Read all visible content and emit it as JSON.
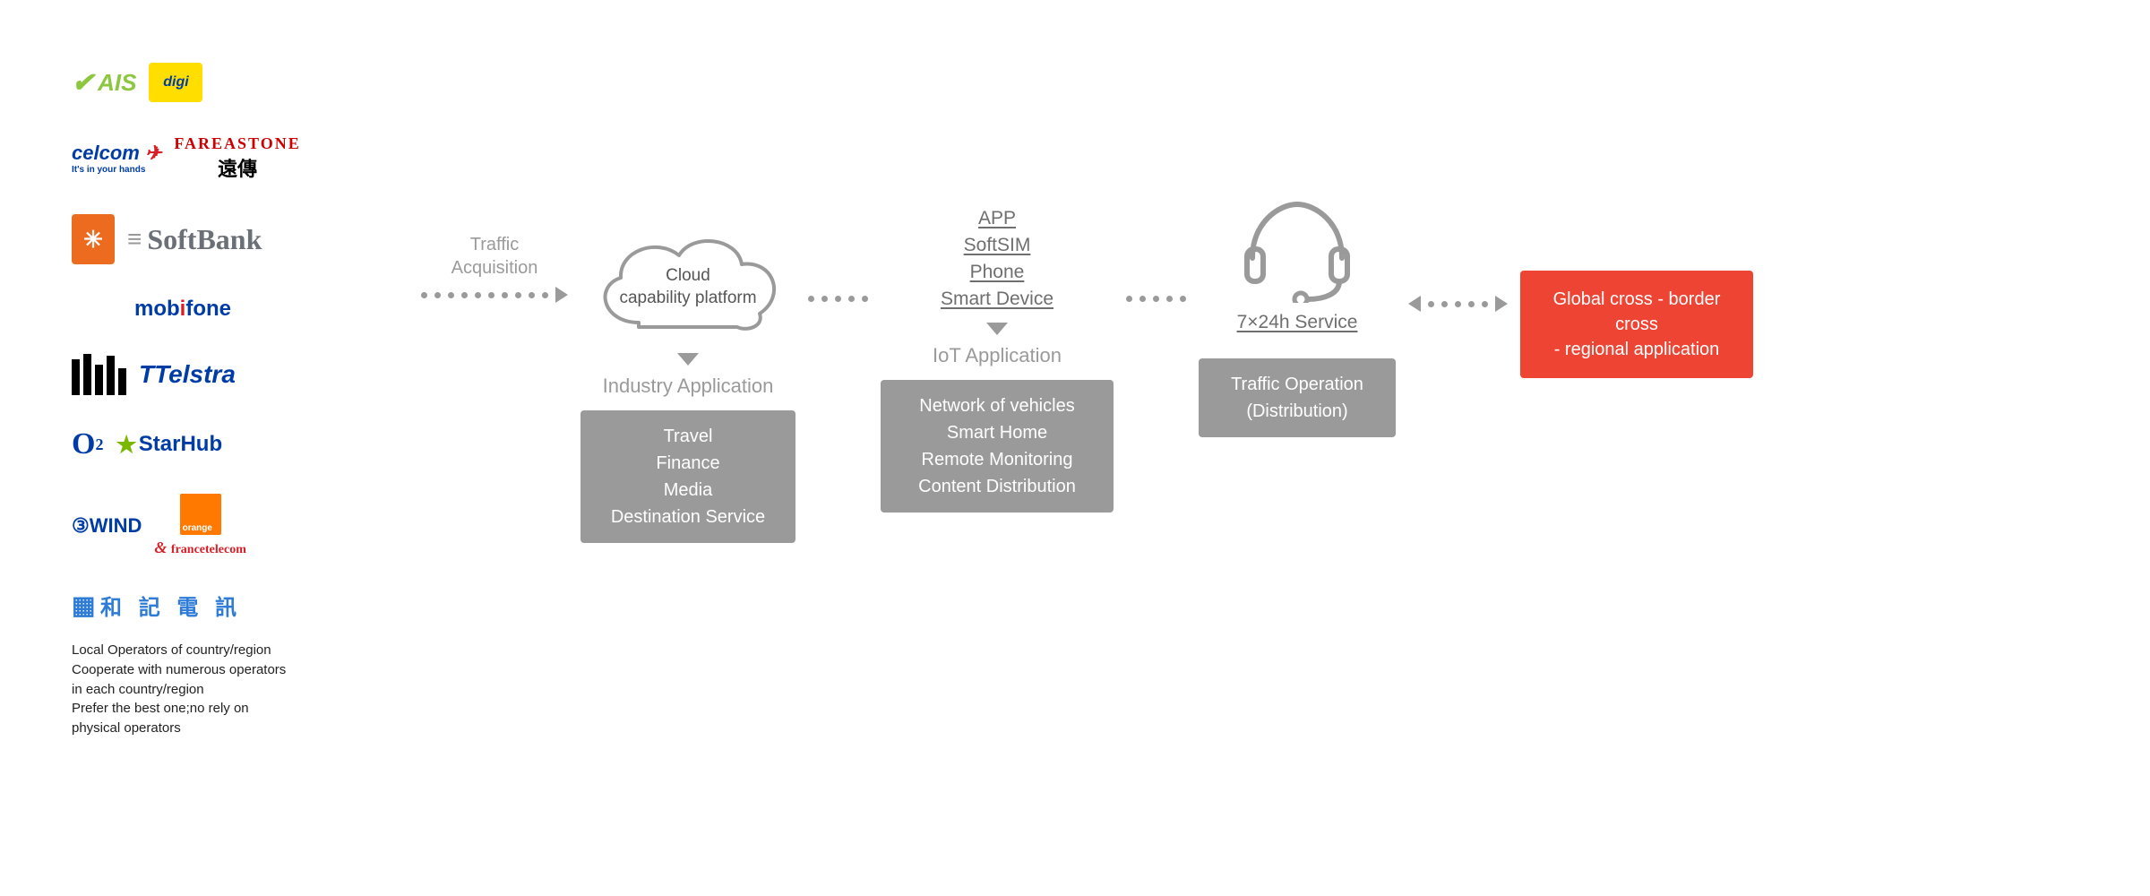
{
  "operators": {
    "logos": {
      "ais": "AIS",
      "digi": "digi",
      "celcom": "celcom",
      "celcom_tag": "It's in your hands",
      "fareastone": "FAREASTONE",
      "fareastone_sub": "遠傳",
      "softbank": "SoftBank",
      "mobifone": "mobifone",
      "telstra": "Telstra",
      "o2": "O",
      "starhub": "StarHub",
      "wind": "WIND",
      "france_tel": "francetelecom",
      "hutchison": "和 記 電 訊"
    },
    "caption_lines": [
      "Local Operators of country/region",
      "Cooperate with numerous operators",
      "in each country/region",
      "Prefer the best one;no rely on",
      "physical operators"
    ]
  },
  "flow": {
    "connector1_label": "Traffic\nAcquisition",
    "cloud_label": "Cloud\ncapability platform",
    "industry_title": "Industry Application",
    "industry_items": [
      "Travel",
      "Finance",
      "Media",
      "Destination Service"
    ],
    "links": [
      "APP",
      "SoftSIM",
      "Phone",
      "Smart Device"
    ],
    "iot_title": "IoT Application",
    "iot_items": [
      "Network of vehicles",
      "Smart Home",
      "Remote Monitoring",
      "Content Distribution"
    ],
    "service_label": "7×24h Service",
    "traffic_op_lines": [
      "Traffic Operation",
      "(Distribution)"
    ],
    "red_box_lines": [
      "Global cross - border cross",
      "- regional application"
    ]
  },
  "colors": {
    "gray": "#9a9a9a",
    "darkgray": "#6f6f6f",
    "red": "#ee4433",
    "white": "#ffffff",
    "text": "#222222"
  },
  "connector_dots": {
    "traffic_acq": 10,
    "short": 5,
    "bidir": 5
  }
}
